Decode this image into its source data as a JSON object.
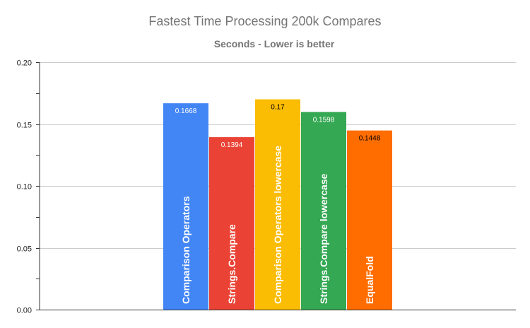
{
  "chart_data": {
    "type": "bar",
    "title": "Fastest Time Processing 200k Compares",
    "subtitle": "Seconds - Lower is better",
    "categories": [
      "Comparison Operators",
      "Strings.Compare",
      "Comparison Operators lowercase",
      "Strings.Compare lowercase",
      "EqualFold"
    ],
    "values": [
      0.1668,
      0.1394,
      0.17,
      0.1598,
      0.1448
    ],
    "data_labels": [
      "0.1668",
      "0.1394",
      "0.17",
      "0.1598",
      "0.1448"
    ],
    "colors": [
      "#4285f4",
      "#ea4335",
      "#fbbc04",
      "#34a853",
      "#ff6d01"
    ],
    "data_label_colors": [
      "#ffffff",
      "#ffffff",
      "#000000",
      "#ffffff",
      "#000000"
    ],
    "ylim": [
      0,
      0.2
    ],
    "yticks": [
      "0.00",
      "0.05",
      "0.10",
      "0.15",
      "0.20"
    ],
    "ytick_values": [
      0,
      0.05,
      0.1,
      0.15,
      0.2
    ],
    "grid": true,
    "legend": "none",
    "category_labels_inside_bars": true
  }
}
